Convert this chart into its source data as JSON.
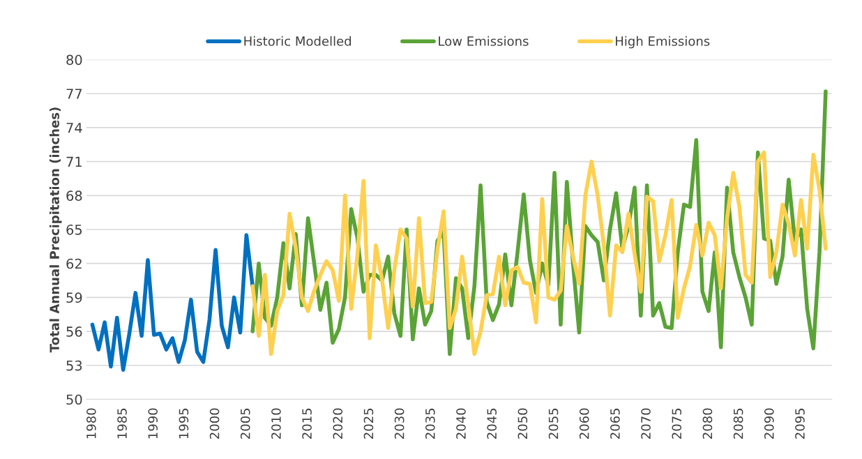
{
  "chart_data": {
    "type": "line",
    "ylabel": "Total Annual Precipitation (inches)",
    "xlim": [
      1979,
      2100
    ],
    "ylim": [
      50,
      80
    ],
    "xticks": [
      1980,
      1985,
      1990,
      1995,
      2000,
      2005,
      2010,
      2015,
      2020,
      2025,
      2030,
      2035,
      2040,
      2045,
      2050,
      2055,
      2060,
      2065,
      2070,
      2075,
      2080,
      2085,
      2090,
      2095
    ],
    "yticks": [
      50,
      53,
      56,
      59,
      62,
      65,
      68,
      71,
      74,
      77,
      80
    ],
    "grid": "y",
    "legend": "top",
    "line_style": "solid",
    "marker": "none",
    "series": [
      {
        "name": "Historic Modelled",
        "color": "#0070c0",
        "x": [
          1980,
          1981,
          1982,
          1983,
          1984,
          1985,
          1986,
          1987,
          1988,
          1989,
          1990,
          1991,
          1992,
          1993,
          1994,
          1995,
          1996,
          1997,
          1998,
          1999,
          2000,
          2001,
          2002,
          2003,
          2004,
          2005,
          2006
        ],
        "values": [
          56.6,
          54.4,
          56.8,
          52.9,
          57.2,
          52.6,
          55.8,
          59.4,
          55.6,
          62.3,
          55.7,
          55.8,
          54.4,
          55.4,
          53.3,
          55.2,
          58.8,
          54.2,
          53.3,
          57.0,
          63.2,
          56.5,
          54.6,
          59.0,
          55.9,
          64.5,
          60.0
        ]
      },
      {
        "name": "Low Emissions",
        "color": "#5aa336",
        "x": [
          2006,
          2007,
          2008,
          2009,
          2010,
          2011,
          2012,
          2013,
          2014,
          2015,
          2016,
          2017,
          2018,
          2019,
          2020,
          2021,
          2022,
          2023,
          2024,
          2025,
          2026,
          2027,
          2028,
          2029,
          2030,
          2031,
          2032,
          2033,
          2034,
          2035,
          2036,
          2037,
          2038,
          2039,
          2040,
          2041,
          2042,
          2043,
          2044,
          2045,
          2046,
          2047,
          2048,
          2049,
          2050,
          2051,
          2052,
          2053,
          2054,
          2055,
          2056,
          2057,
          2058,
          2059,
          2060,
          2061,
          2062,
          2063,
          2064,
          2065,
          2066,
          2067,
          2068,
          2069,
          2070,
          2071,
          2072,
          2073,
          2074,
          2075,
          2076,
          2077,
          2078,
          2079,
          2080,
          2081,
          2082,
          2083,
          2084,
          2085,
          2086,
          2087,
          2088,
          2089,
          2090,
          2091,
          2092,
          2093,
          2094,
          2095,
          2096,
          2097,
          2098,
          2099
        ],
        "values": [
          56.0,
          62.0,
          57.2,
          56.5,
          59.0,
          63.8,
          59.8,
          64.6,
          58.3,
          66.0,
          62.0,
          57.9,
          60.3,
          55.0,
          56.2,
          59.0,
          66.8,
          64.3,
          59.5,
          61.0,
          61.0,
          60.5,
          62.6,
          57.6,
          55.6,
          65.0,
          55.3,
          59.8,
          56.6,
          57.8,
          64.0,
          64.8,
          54.0,
          60.7,
          59.8,
          55.4,
          60.0,
          68.9,
          58.6,
          57.0,
          58.4,
          62.8,
          58.3,
          63.0,
          68.1,
          62.3,
          59.4,
          62.0,
          60.1,
          70.0,
          56.6,
          69.2,
          62.0,
          55.9,
          65.3,
          64.5,
          63.9,
          60.5,
          65.0,
          68.2,
          63.3,
          65.3,
          68.7,
          57.4,
          68.9,
          57.4,
          58.5,
          56.4,
          56.3,
          63.0,
          67.2,
          67.0,
          72.9,
          59.5,
          57.8,
          63.0,
          54.6,
          68.7,
          63.0,
          60.8,
          59.0,
          56.6,
          71.8,
          64.2,
          64.0,
          60.2,
          62.6,
          69.4,
          64.0,
          65.0,
          58.0,
          54.5,
          63.0,
          77.2
        ]
      },
      {
        "name": "High Emissions",
        "color": "#ffd04f",
        "x": [
          2006,
          2007,
          2008,
          2009,
          2010,
          2011,
          2012,
          2013,
          2014,
          2015,
          2016,
          2017,
          2018,
          2019,
          2020,
          2021,
          2022,
          2023,
          2024,
          2025,
          2026,
          2027,
          2028,
          2029,
          2030,
          2031,
          2032,
          2033,
          2034,
          2035,
          2036,
          2037,
          2038,
          2039,
          2040,
          2041,
          2042,
          2043,
          2044,
          2045,
          2046,
          2047,
          2048,
          2049,
          2050,
          2051,
          2052,
          2053,
          2054,
          2055,
          2056,
          2057,
          2058,
          2059,
          2060,
          2061,
          2062,
          2063,
          2064,
          2065,
          2066,
          2067,
          2068,
          2069,
          2070,
          2071,
          2072,
          2073,
          2074,
          2075,
          2076,
          2077,
          2078,
          2079,
          2080,
          2081,
          2082,
          2083,
          2084,
          2085,
          2086,
          2087,
          2088,
          2089,
          2090,
          2091,
          2092,
          2093,
          2094,
          2095,
          2096,
          2097,
          2098,
          2099
        ],
        "values": [
          60.0,
          55.6,
          61.0,
          54.0,
          57.8,
          59.2,
          66.4,
          63.4,
          59.0,
          57.8,
          59.6,
          61.0,
          62.2,
          61.4,
          58.7,
          68.0,
          58.0,
          62.7,
          69.3,
          55.4,
          63.6,
          60.6,
          56.3,
          61.4,
          65.0,
          64.2,
          58.2,
          66.0,
          58.5,
          58.6,
          63.2,
          66.6,
          56.3,
          58.0,
          62.6,
          58.4,
          54.0,
          56.0,
          59.2,
          59.3,
          62.6,
          58.3,
          61.4,
          61.7,
          60.3,
          60.2,
          56.8,
          67.7,
          59.0,
          58.8,
          59.6,
          65.3,
          62.6,
          60.2,
          68.0,
          71.0,
          68.0,
          63.6,
          57.4,
          63.6,
          63.0,
          66.4,
          62.8,
          59.5,
          67.9,
          67.5,
          62.2,
          64.5,
          67.6,
          57.2,
          59.8,
          61.8,
          65.4,
          62.7,
          65.6,
          64.5,
          59.8,
          66.0,
          70.0,
          67.0,
          61.0,
          60.3,
          71.0,
          71.8,
          60.8,
          63.0,
          67.2,
          65.5,
          62.7,
          67.6,
          63.3,
          71.6,
          68.5,
          63.3
        ]
      }
    ]
  }
}
